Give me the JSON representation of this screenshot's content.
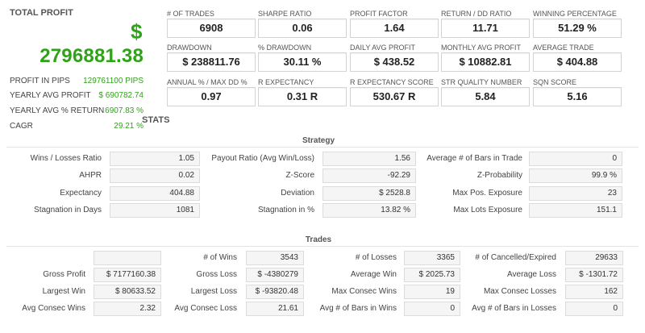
{
  "summary": {
    "title": "TOTAL PROFIT",
    "currency": "$",
    "value": "2796881.38",
    "rows": [
      {
        "label": "PROFIT IN PIPS",
        "value": "129761100 PIPS"
      },
      {
        "label": "YEARLY AVG PROFIT",
        "value": "$ 690782.74"
      },
      {
        "label": "YEARLY AVG % RETURN",
        "value": "6907.83 %"
      },
      {
        "label": "CAGR",
        "value": "29.21 %"
      }
    ],
    "accent_color": "#2fa318"
  },
  "kpis": [
    {
      "label": "# OF TRADES",
      "value": "6908"
    },
    {
      "label": "SHARPE RATIO",
      "value": "0.06"
    },
    {
      "label": "PROFIT FACTOR",
      "value": "1.64"
    },
    {
      "label": "RETURN / DD RATIO",
      "value": "11.71"
    },
    {
      "label": "WINNING PERCENTAGE",
      "value": "51.29 %"
    },
    {
      "label": "DRAWDOWN",
      "value": "$ 238811.76"
    },
    {
      "label": "% DRAWDOWN",
      "value": "30.11 %"
    },
    {
      "label": "DAILY AVG PROFIT",
      "value": "$ 438.52"
    },
    {
      "label": "MONTHLY AVG PROFIT",
      "value": "$ 10882.81"
    },
    {
      "label": "AVERAGE TRADE",
      "value": "$ 404.88"
    },
    {
      "label": "ANNUAL % / MAX DD %",
      "value": "0.97"
    },
    {
      "label": "R EXPECTANCY",
      "value": "0.31 R"
    },
    {
      "label": "R EXPECTANCY SCORE",
      "value": "530.67 R"
    },
    {
      "label": "STR QUALITY NUMBER",
      "value": "5.84"
    },
    {
      "label": "SQN SCORE",
      "value": "5.16"
    }
  ],
  "stats_title": "STATS",
  "strategy": {
    "title": "Strategy",
    "rows": [
      [
        {
          "label": "Wins / Losses Ratio",
          "value": "1.05"
        },
        {
          "label": "Payout Ratio (Avg Win/Loss)",
          "value": "1.56"
        },
        {
          "label": "Average # of Bars in Trade",
          "value": "0"
        }
      ],
      [
        {
          "label": "AHPR",
          "value": "0.02"
        },
        {
          "label": "Z-Score",
          "value": "-92.29"
        },
        {
          "label": "Z-Probability",
          "value": "99.9 %"
        }
      ],
      [
        {
          "label": "Expectancy",
          "value": "404.88"
        },
        {
          "label": "Deviation",
          "value": "$ 2528.8"
        },
        {
          "label": "Max Pos. Exposure",
          "value": "23"
        }
      ],
      [
        {
          "label": "Stagnation in Days",
          "value": "1081"
        },
        {
          "label": "Stagnation in %",
          "value": "13.82 %"
        },
        {
          "label": "Max Lots Exposure",
          "value": "151.1"
        }
      ]
    ]
  },
  "trades": {
    "title": "Trades",
    "rows": [
      [
        {
          "label": "",
          "value": ""
        },
        {
          "label": "# of Wins",
          "value": "3543"
        },
        {
          "label": "# of Losses",
          "value": "3365"
        },
        {
          "label": "# of Cancelled/Expired",
          "value": "29633"
        }
      ],
      [
        {
          "label": "Gross Profit",
          "value": "$ 7177160.38"
        },
        {
          "label": "Gross Loss",
          "value": "$ -4380279"
        },
        {
          "label": "Average Win",
          "value": "$ 2025.73"
        },
        {
          "label": "Average Loss",
          "value": "$ -1301.72"
        }
      ],
      [
        {
          "label": "Largest Win",
          "value": "$ 80633.52"
        },
        {
          "label": "Largest Loss",
          "value": "$ -93820.48"
        },
        {
          "label": "Max Consec Wins",
          "value": "19"
        },
        {
          "label": "Max Consec Losses",
          "value": "162"
        }
      ],
      [
        {
          "label": "Avg Consec Wins",
          "value": "2.32"
        },
        {
          "label": "Avg Consec Loss",
          "value": "21.61"
        },
        {
          "label": "Avg # of Bars in Wins",
          "value": "0"
        },
        {
          "label": "Avg # of Bars in Losses",
          "value": "0"
        }
      ]
    ]
  }
}
